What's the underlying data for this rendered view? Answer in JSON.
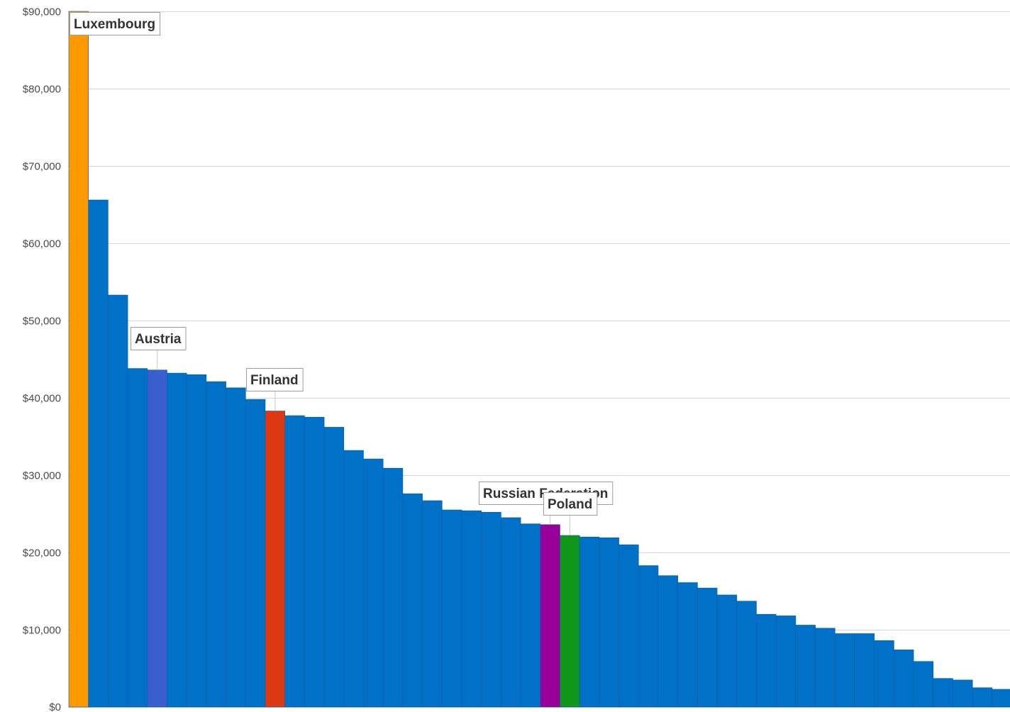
{
  "chart_data": {
    "type": "bar",
    "title": "",
    "xlabel": "",
    "ylabel": "",
    "ylim": [
      0,
      90000
    ],
    "grid": true,
    "legend": "none",
    "y_ticks": [
      "$0",
      "$10,000",
      "$20,000",
      "$30,000",
      "$40,000",
      "$50,000",
      "$60,000",
      "$70,000",
      "$80,000",
      "$90,000"
    ],
    "y_tick_values": [
      0,
      10000,
      20000,
      30000,
      40000,
      50000,
      60000,
      70000,
      80000,
      90000
    ],
    "default_color": "#0071c6",
    "values": [
      90000,
      65600,
      53300,
      43800,
      43600,
      43200,
      43000,
      42100,
      41300,
      39800,
      38300,
      37700,
      37500,
      36200,
      33200,
      32100,
      30900,
      27600,
      26700,
      25500,
      25400,
      25200,
      24500,
      23700,
      23600,
      22200,
      22000,
      21900,
      21000,
      18300,
      17000,
      16100,
      15400,
      14500,
      13700,
      12000,
      11800,
      10600,
      10200,
      9500,
      9500,
      8600,
      7400,
      5900,
      3700,
      3500,
      2500,
      2300
    ],
    "highlights": [
      {
        "index": 0,
        "label": "Luxembourg",
        "color": "#ff9900"
      },
      {
        "index": 4,
        "label": "Austria",
        "color": "#3a5fcd"
      },
      {
        "index": 10,
        "label": "Finland",
        "color": "#dc3912"
      },
      {
        "index": 24,
        "label": "Russian Federation",
        "color": "#990099"
      },
      {
        "index": 25,
        "label": "Poland",
        "color": "#109618"
      }
    ]
  }
}
